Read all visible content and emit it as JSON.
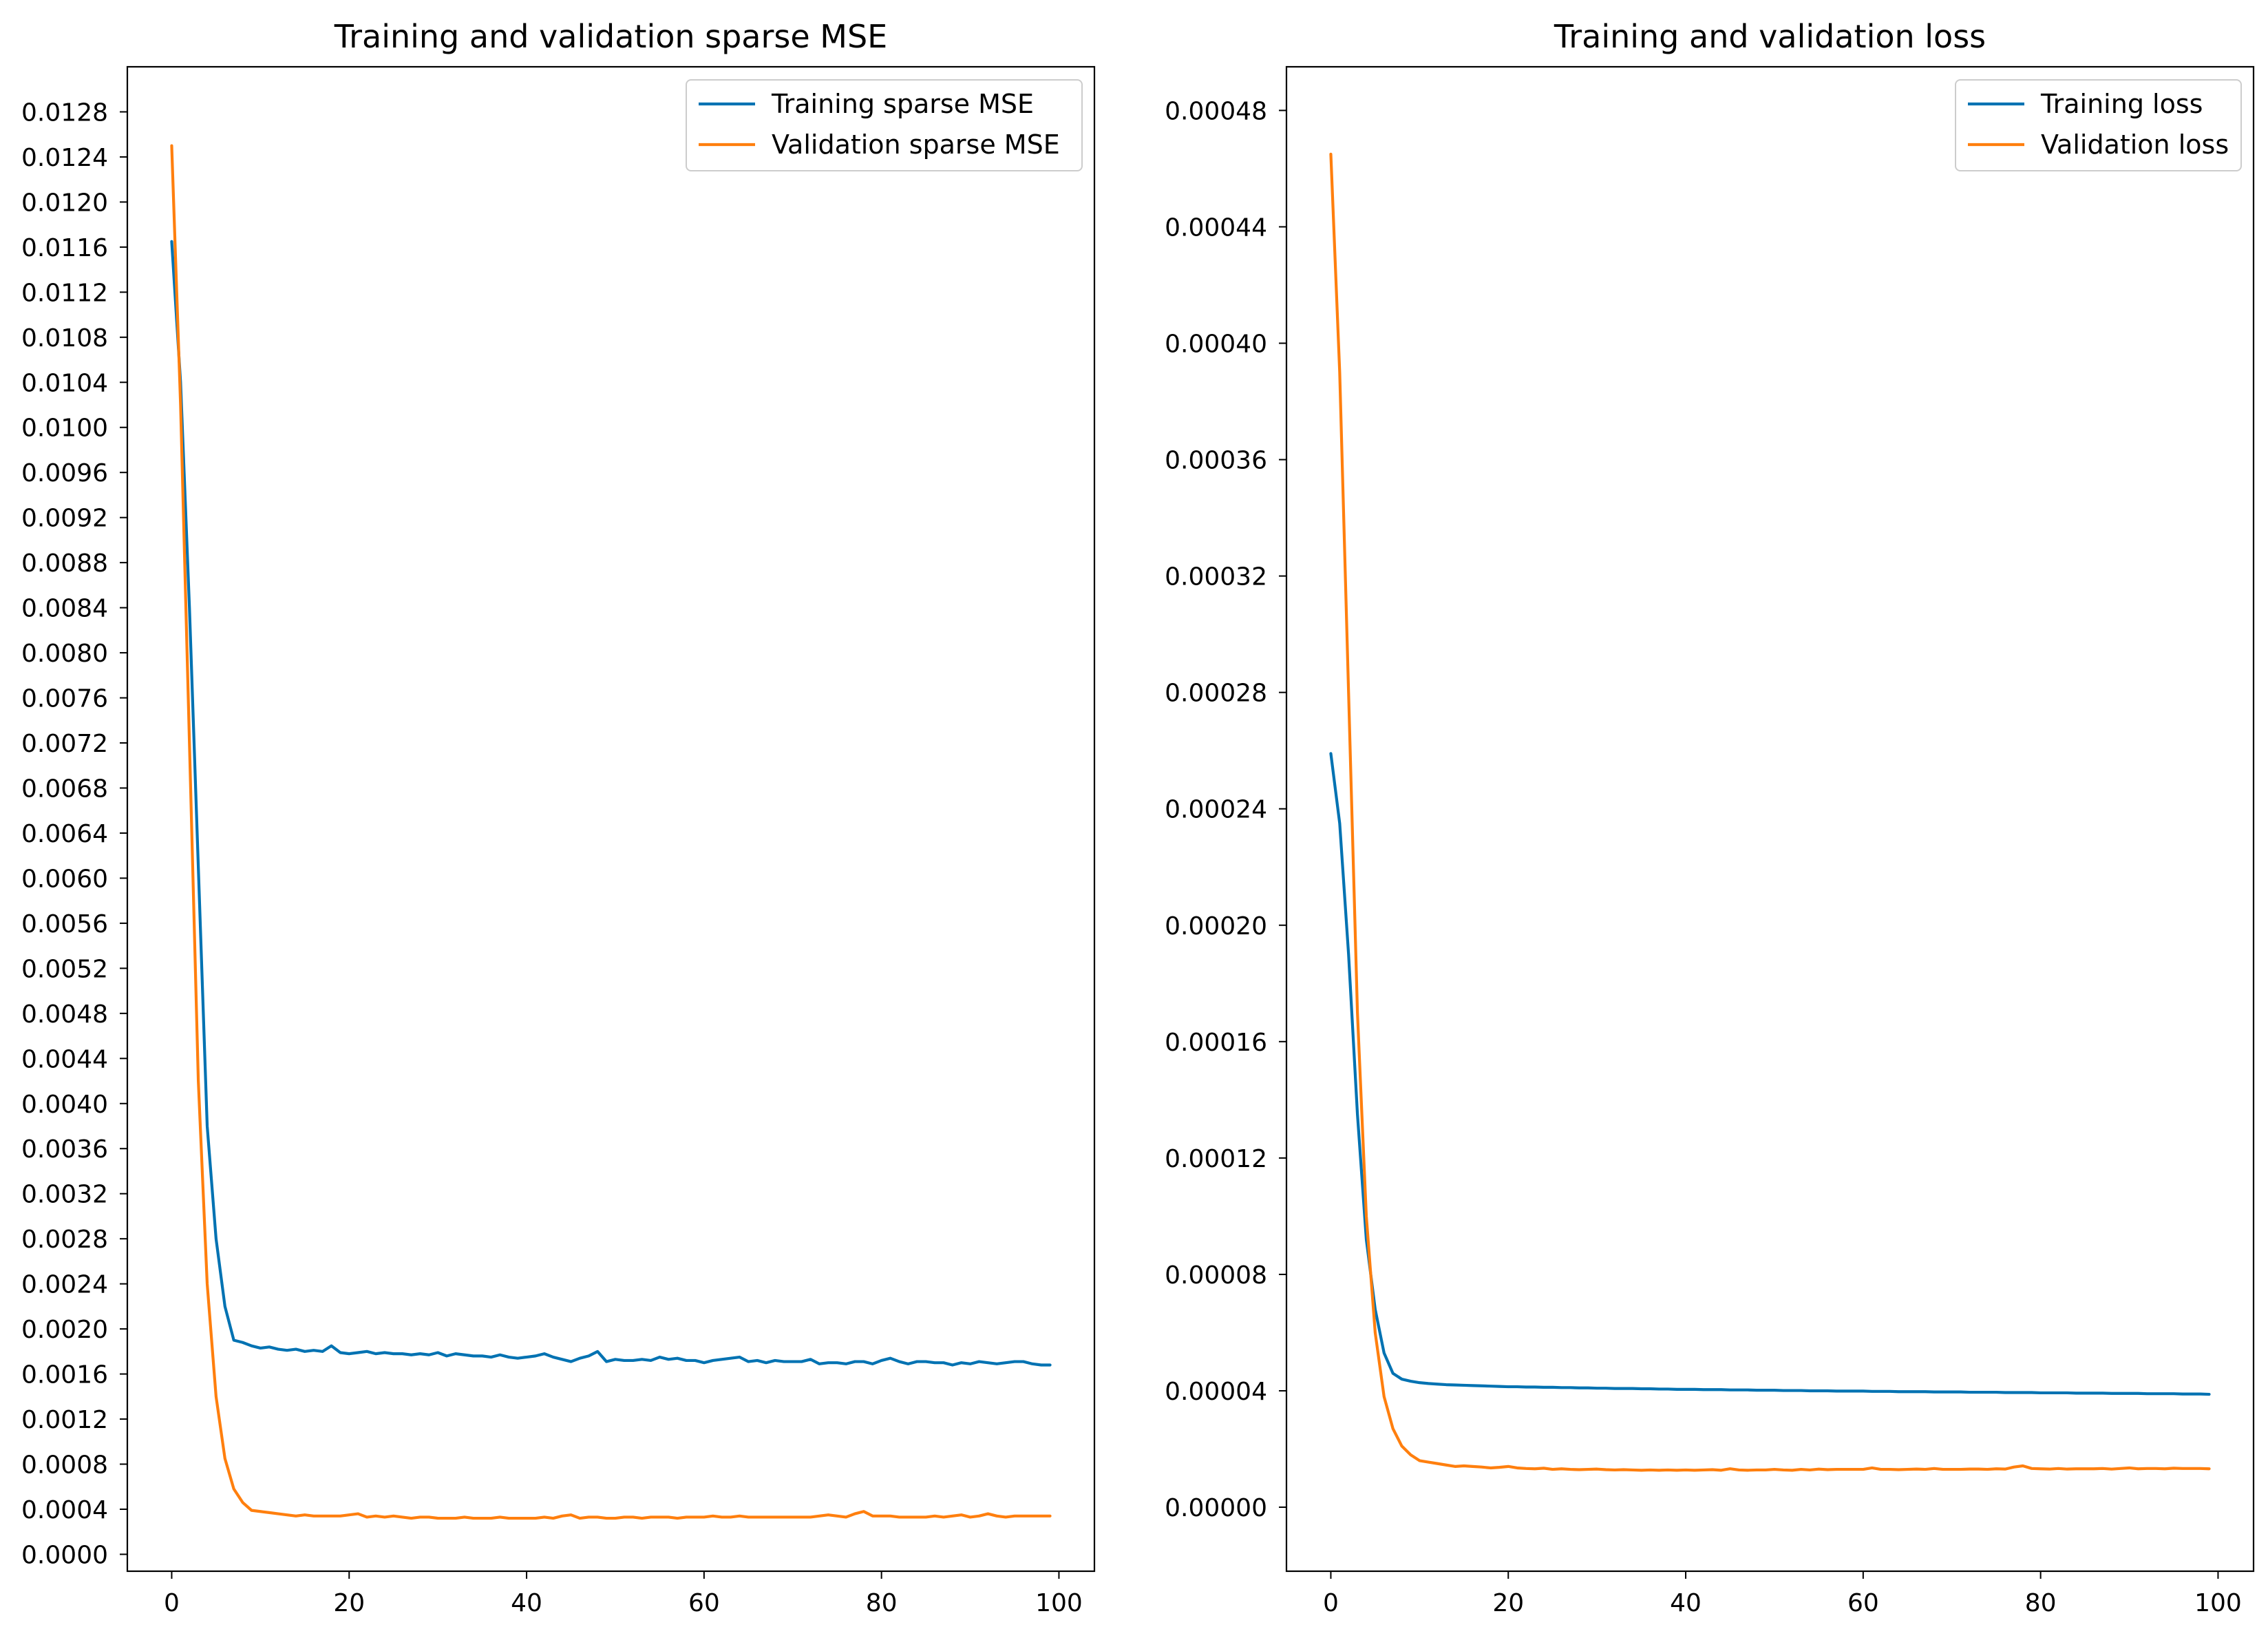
{
  "colors": {
    "training": "#0072B2",
    "validation": "#FF7F0E",
    "axes": "#000000",
    "legend_border": "#cccccc"
  },
  "chart_data": [
    {
      "type": "line",
      "title": "Training and validation sparse MSE",
      "xlabel": "",
      "ylabel": "",
      "xlim": [
        -5,
        104
      ],
      "ylim": [
        -0.00015,
        0.0132
      ],
      "xticks": [
        0,
        20,
        40,
        60,
        80,
        100
      ],
      "xtick_labels": [
        "0",
        "20",
        "40",
        "60",
        "80",
        "100"
      ],
      "yticks": [
        0.0,
        0.0004,
        0.0008,
        0.0012,
        0.0016,
        0.002,
        0.0024,
        0.0028,
        0.0032,
        0.0036,
        0.004,
        0.0044,
        0.0048,
        0.0052,
        0.0056,
        0.006,
        0.0064,
        0.0068,
        0.0072,
        0.0076,
        0.008,
        0.0084,
        0.0088,
        0.0092,
        0.0096,
        0.01,
        0.0104,
        0.0108,
        0.0112,
        0.0116,
        0.012,
        0.0124,
        0.0128
      ],
      "ytick_labels": [
        "0.0000",
        "0.0004",
        "0.0008",
        "0.0012",
        "0.0016",
        "0.0020",
        "0.0024",
        "0.0028",
        "0.0032",
        "0.0036",
        "0.0040",
        "0.0044",
        "0.0048",
        "0.0052",
        "0.0056",
        "0.0060",
        "0.0064",
        "0.0068",
        "0.0072",
        "0.0076",
        "0.0080",
        "0.0084",
        "0.0088",
        "0.0092",
        "0.0096",
        "0.0100",
        "0.0104",
        "0.0108",
        "0.0112",
        "0.0116",
        "0.0120",
        "0.0124",
        "0.0128"
      ],
      "legend_position": "upper-right",
      "series": [
        {
          "name": "Training sparse MSE",
          "color_key": "training",
          "x": [
            0,
            1,
            2,
            3,
            4,
            5,
            6,
            7,
            8,
            9,
            10,
            11,
            12,
            13,
            14,
            15,
            16,
            17,
            18,
            19,
            20,
            21,
            22,
            23,
            24,
            25,
            26,
            27,
            28,
            29,
            30,
            31,
            32,
            33,
            34,
            35,
            36,
            37,
            38,
            39,
            40,
            41,
            42,
            43,
            44,
            45,
            46,
            47,
            48,
            49,
            50,
            51,
            52,
            53,
            54,
            55,
            56,
            57,
            58,
            59,
            60,
            61,
            62,
            63,
            64,
            65,
            66,
            67,
            68,
            69,
            70,
            71,
            72,
            73,
            74,
            75,
            76,
            77,
            78,
            79,
            80,
            81,
            82,
            83,
            84,
            85,
            86,
            87,
            88,
            89,
            90,
            91,
            92,
            93,
            94,
            95,
            96,
            97,
            98,
            99
          ],
          "values": [
            0.01165,
            0.0104,
            0.0084,
            0.0061,
            0.0038,
            0.0028,
            0.0022,
            0.0019,
            0.00188,
            0.00185,
            0.00183,
            0.00184,
            0.00182,
            0.00181,
            0.00182,
            0.0018,
            0.00181,
            0.0018,
            0.00185,
            0.00179,
            0.00178,
            0.00179,
            0.0018,
            0.00178,
            0.00179,
            0.00178,
            0.00178,
            0.00177,
            0.00178,
            0.00177,
            0.00179,
            0.00176,
            0.00178,
            0.00177,
            0.00176,
            0.00176,
            0.00175,
            0.00177,
            0.00175,
            0.00174,
            0.00175,
            0.00176,
            0.00178,
            0.00175,
            0.00173,
            0.00171,
            0.00174,
            0.00176,
            0.0018,
            0.00171,
            0.00173,
            0.00172,
            0.00172,
            0.00173,
            0.00172,
            0.00175,
            0.00173,
            0.00174,
            0.00172,
            0.00172,
            0.0017,
            0.00172,
            0.00173,
            0.00174,
            0.00175,
            0.00171,
            0.00172,
            0.0017,
            0.00172,
            0.00171,
            0.00171,
            0.00171,
            0.00173,
            0.00169,
            0.0017,
            0.0017,
            0.00169,
            0.00171,
            0.00171,
            0.00169,
            0.00172,
            0.00174,
            0.00171,
            0.00169,
            0.00171,
            0.00171,
            0.0017,
            0.0017,
            0.00168,
            0.0017,
            0.00169,
            0.00171,
            0.0017,
            0.00169,
            0.0017,
            0.00171,
            0.00171,
            0.00169,
            0.00168,
            0.00168
          ]
        },
        {
          "name": "Validation sparse MSE",
          "color_key": "validation",
          "x": [
            0,
            1,
            2,
            3,
            4,
            5,
            6,
            7,
            8,
            9,
            10,
            11,
            12,
            13,
            14,
            15,
            16,
            17,
            18,
            19,
            20,
            21,
            22,
            23,
            24,
            25,
            26,
            27,
            28,
            29,
            30,
            31,
            32,
            33,
            34,
            35,
            36,
            37,
            38,
            39,
            40,
            41,
            42,
            43,
            44,
            45,
            46,
            47,
            48,
            49,
            50,
            51,
            52,
            53,
            54,
            55,
            56,
            57,
            58,
            59,
            60,
            61,
            62,
            63,
            64,
            65,
            66,
            67,
            68,
            69,
            70,
            71,
            72,
            73,
            74,
            75,
            76,
            77,
            78,
            79,
            80,
            81,
            82,
            83,
            84,
            85,
            86,
            87,
            88,
            89,
            90,
            91,
            92,
            93,
            94,
            95,
            96,
            97,
            98,
            99
          ],
          "values": [
            0.0125,
            0.0102,
            0.0072,
            0.0042,
            0.0024,
            0.0014,
            0.00085,
            0.00058,
            0.00046,
            0.00039,
            0.00038,
            0.00037,
            0.00036,
            0.00035,
            0.00034,
            0.00035,
            0.00034,
            0.00034,
            0.00034,
            0.00034,
            0.00035,
            0.00036,
            0.00033,
            0.00034,
            0.00033,
            0.00034,
            0.00033,
            0.00032,
            0.00033,
            0.00033,
            0.00032,
            0.00032,
            0.00032,
            0.00033,
            0.00032,
            0.00032,
            0.00032,
            0.00033,
            0.00032,
            0.00032,
            0.00032,
            0.00032,
            0.00033,
            0.00032,
            0.00034,
            0.00035,
            0.00032,
            0.00033,
            0.00033,
            0.00032,
            0.00032,
            0.00033,
            0.00033,
            0.00032,
            0.00033,
            0.00033,
            0.00033,
            0.00032,
            0.00033,
            0.00033,
            0.00033,
            0.00034,
            0.00033,
            0.00033,
            0.00034,
            0.00033,
            0.00033,
            0.00033,
            0.00033,
            0.00033,
            0.00033,
            0.00033,
            0.00033,
            0.00034,
            0.00035,
            0.00034,
            0.00033,
            0.00036,
            0.00038,
            0.00034,
            0.00034,
            0.00034,
            0.00033,
            0.00033,
            0.00033,
            0.00033,
            0.00034,
            0.00033,
            0.00034,
            0.00035,
            0.00033,
            0.00034,
            0.00036,
            0.00034,
            0.00033,
            0.00034,
            0.00034,
            0.00034,
            0.00034,
            0.00034
          ]
        }
      ]
    },
    {
      "type": "line",
      "title": "Training and validation loss",
      "xlabel": "",
      "ylabel": "",
      "xlim": [
        -5,
        104
      ],
      "ylim": [
        -2.2e-05,
        0.000495
      ],
      "xticks": [
        0,
        20,
        40,
        60,
        80,
        100
      ],
      "xtick_labels": [
        "0",
        "20",
        "40",
        "60",
        "80",
        "100"
      ],
      "yticks": [
        0.0,
        4e-05,
        8e-05,
        0.00012,
        0.00016,
        0.0002,
        0.00024,
        0.00028,
        0.00032,
        0.00036,
        0.0004,
        0.00044,
        0.00048
      ],
      "ytick_labels": [
        "0.00000",
        "0.00004",
        "0.00008",
        "0.00012",
        "0.00016",
        "0.00020",
        "0.00024",
        "0.00028",
        "0.00032",
        "0.00036",
        "0.00040",
        "0.00044",
        "0.00048"
      ],
      "legend_position": "upper-right",
      "series": [
        {
          "name": "Training loss",
          "color_key": "training",
          "x": [
            0,
            1,
            2,
            3,
            4,
            5,
            6,
            7,
            8,
            9,
            10,
            11,
            12,
            13,
            14,
            15,
            16,
            17,
            18,
            19,
            20,
            21,
            22,
            23,
            24,
            25,
            26,
            27,
            28,
            29,
            30,
            31,
            32,
            33,
            34,
            35,
            36,
            37,
            38,
            39,
            40,
            41,
            42,
            43,
            44,
            45,
            46,
            47,
            48,
            49,
            50,
            51,
            52,
            53,
            54,
            55,
            56,
            57,
            58,
            59,
            60,
            61,
            62,
            63,
            64,
            65,
            66,
            67,
            68,
            69,
            70,
            71,
            72,
            73,
            74,
            75,
            76,
            77,
            78,
            79,
            80,
            81,
            82,
            83,
            84,
            85,
            86,
            87,
            88,
            89,
            90,
            91,
            92,
            93,
            94,
            95,
            96,
            97,
            98,
            99
          ],
          "values": [
            0.000259,
            0.000235,
            0.00019,
            0.000135,
            9.2e-05,
            6.8e-05,
            5.3e-05,
            4.6e-05,
            4.4e-05,
            4.33e-05,
            4.28e-05,
            4.25e-05,
            4.23e-05,
            4.21e-05,
            4.2e-05,
            4.19e-05,
            4.18e-05,
            4.17e-05,
            4.16e-05,
            4.15e-05,
            4.14e-05,
            4.14e-05,
            4.13e-05,
            4.13e-05,
            4.12e-05,
            4.12e-05,
            4.11e-05,
            4.11e-05,
            4.1e-05,
            4.1e-05,
            4.09e-05,
            4.09e-05,
            4.08e-05,
            4.08e-05,
            4.08e-05,
            4.07e-05,
            4.07e-05,
            4.06e-05,
            4.06e-05,
            4.05e-05,
            4.05e-05,
            4.05e-05,
            4.04e-05,
            4.04e-05,
            4.04e-05,
            4.03e-05,
            4.03e-05,
            4.03e-05,
            4.02e-05,
            4.02e-05,
            4.02e-05,
            4.01e-05,
            4.01e-05,
            4.01e-05,
            4e-05,
            4e-05,
            4e-05,
            3.99e-05,
            3.99e-05,
            3.99e-05,
            3.99e-05,
            3.98e-05,
            3.98e-05,
            3.98e-05,
            3.97e-05,
            3.97e-05,
            3.97e-05,
            3.97e-05,
            3.96e-05,
            3.96e-05,
            3.96e-05,
            3.96e-05,
            3.95e-05,
            3.95e-05,
            3.95e-05,
            3.95e-05,
            3.94e-05,
            3.94e-05,
            3.94e-05,
            3.94e-05,
            3.93e-05,
            3.93e-05,
            3.93e-05,
            3.93e-05,
            3.92e-05,
            3.92e-05,
            3.92e-05,
            3.92e-05,
            3.91e-05,
            3.91e-05,
            3.91e-05,
            3.91e-05,
            3.9e-05,
            3.9e-05,
            3.9e-05,
            3.9e-05,
            3.89e-05,
            3.89e-05,
            3.89e-05,
            3.88e-05
          ]
        },
        {
          "name": "Validation loss",
          "color_key": "validation",
          "x": [
            0,
            1,
            2,
            3,
            4,
            5,
            6,
            7,
            8,
            9,
            10,
            11,
            12,
            13,
            14,
            15,
            16,
            17,
            18,
            19,
            20,
            21,
            22,
            23,
            24,
            25,
            26,
            27,
            28,
            29,
            30,
            31,
            32,
            33,
            34,
            35,
            36,
            37,
            38,
            39,
            40,
            41,
            42,
            43,
            44,
            45,
            46,
            47,
            48,
            49,
            50,
            51,
            52,
            53,
            54,
            55,
            56,
            57,
            58,
            59,
            60,
            61,
            62,
            63,
            64,
            65,
            66,
            67,
            68,
            69,
            70,
            71,
            72,
            73,
            74,
            75,
            76,
            77,
            78,
            79,
            80,
            81,
            82,
            83,
            84,
            85,
            86,
            87,
            88,
            89,
            90,
            91,
            92,
            93,
            94,
            95,
            96,
            97,
            98,
            99
          ],
          "values": [
            0.000465,
            0.00039,
            0.00028,
            0.00017,
            0.0001,
            6e-05,
            3.8e-05,
            2.7e-05,
            2.1e-05,
            1.8e-05,
            1.6e-05,
            1.55e-05,
            1.5e-05,
            1.45e-05,
            1.4e-05,
            1.42e-05,
            1.4e-05,
            1.38e-05,
            1.35e-05,
            1.37e-05,
            1.4e-05,
            1.35e-05,
            1.33e-05,
            1.32e-05,
            1.34e-05,
            1.3e-05,
            1.32e-05,
            1.3e-05,
            1.29e-05,
            1.3e-05,
            1.31e-05,
            1.29e-05,
            1.28e-05,
            1.29e-05,
            1.28e-05,
            1.27e-05,
            1.28e-05,
            1.27e-05,
            1.28e-05,
            1.27e-05,
            1.28e-05,
            1.27e-05,
            1.28e-05,
            1.29e-05,
            1.27e-05,
            1.32e-05,
            1.28e-05,
            1.27e-05,
            1.28e-05,
            1.28e-05,
            1.3e-05,
            1.28e-05,
            1.27e-05,
            1.3e-05,
            1.28e-05,
            1.31e-05,
            1.29e-05,
            1.3e-05,
            1.3e-05,
            1.3e-05,
            1.3e-05,
            1.35e-05,
            1.3e-05,
            1.3e-05,
            1.29e-05,
            1.3e-05,
            1.31e-05,
            1.3e-05,
            1.33e-05,
            1.3e-05,
            1.3e-05,
            1.3e-05,
            1.31e-05,
            1.31e-05,
            1.3e-05,
            1.32e-05,
            1.31e-05,
            1.38e-05,
            1.42e-05,
            1.33e-05,
            1.32e-05,
            1.31e-05,
            1.33e-05,
            1.31e-05,
            1.32e-05,
            1.32e-05,
            1.32e-05,
            1.33e-05,
            1.31e-05,
            1.33e-05,
            1.35e-05,
            1.32e-05,
            1.33e-05,
            1.33e-05,
            1.32e-05,
            1.34e-05,
            1.33e-05,
            1.33e-05,
            1.33e-05,
            1.32e-05
          ]
        }
      ]
    }
  ]
}
